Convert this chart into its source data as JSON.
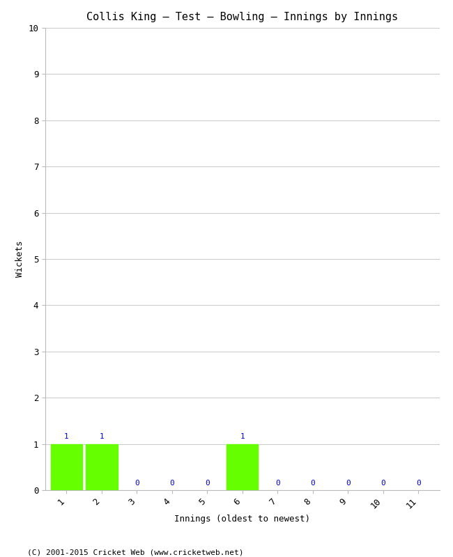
{
  "title": "Collis King – Test – Bowling – Innings by Innings",
  "xlabel": "Innings (oldest to newest)",
  "ylabel": "Wickets",
  "innings": [
    1,
    2,
    3,
    4,
    5,
    6,
    7,
    8,
    9,
    10,
    11
  ],
  "wickets": [
    1,
    1,
    0,
    0,
    0,
    1,
    0,
    0,
    0,
    0,
    0
  ],
  "bar_color": "#66ff00",
  "zero_color": "#0000cc",
  "ylim": [
    0,
    10
  ],
  "yticks": [
    0,
    1,
    2,
    3,
    4,
    5,
    6,
    7,
    8,
    9,
    10
  ],
  "background_color": "#ffffff",
  "grid_color": "#cccccc",
  "title_fontsize": 11,
  "label_fontsize": 9,
  "tick_fontsize": 9,
  "annotation_fontsize": 8,
  "footer": "(C) 2001-2015 Cricket Web (www.cricketweb.net)",
  "footer_fontsize": 8
}
